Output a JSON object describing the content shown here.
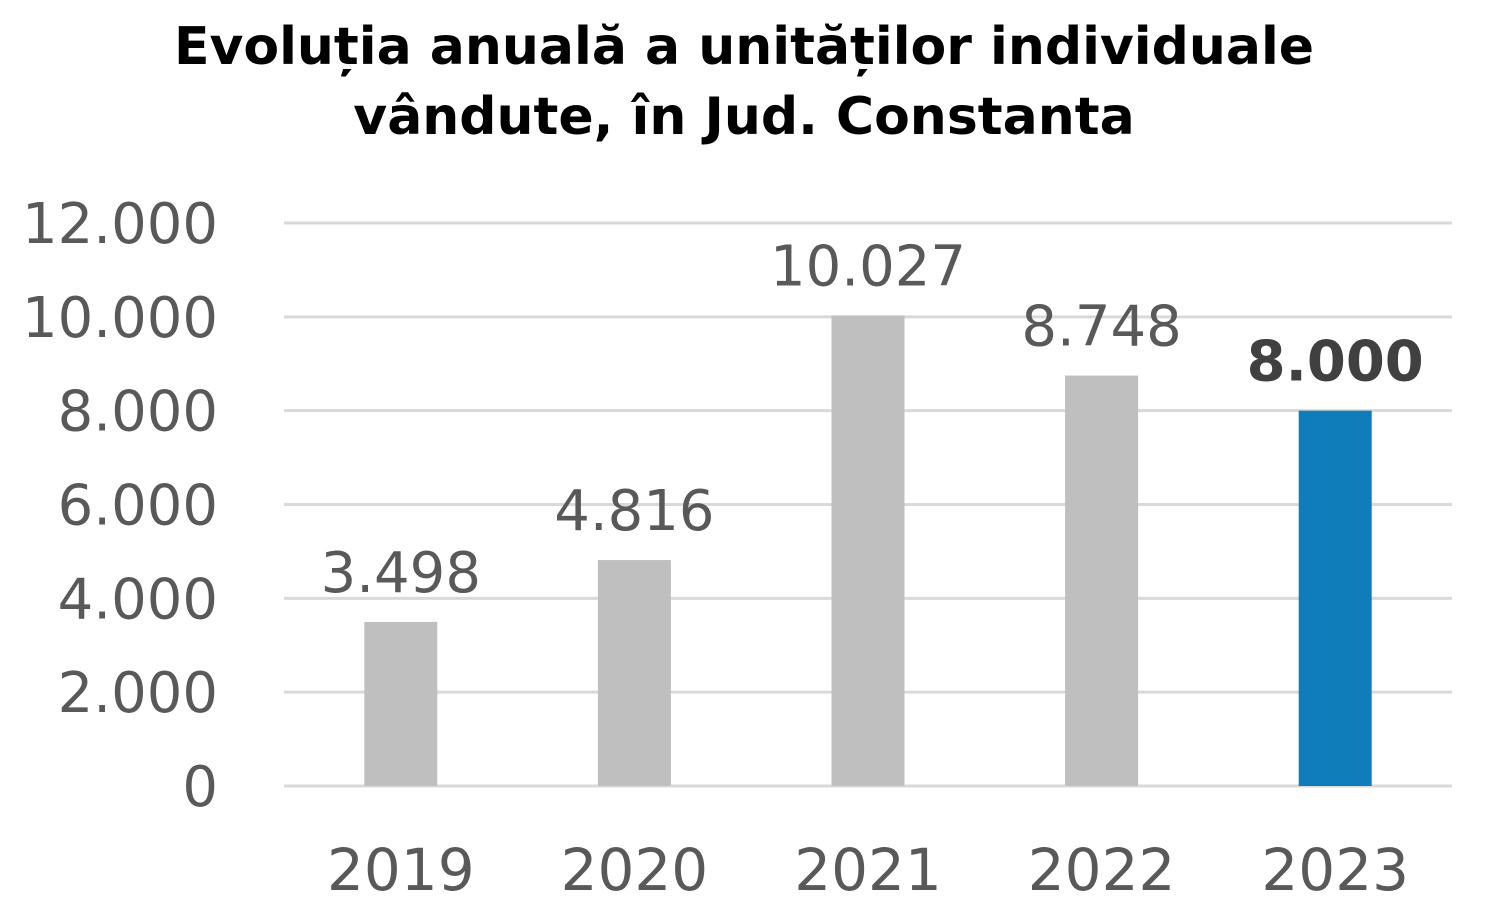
{
  "chart_data": {
    "type": "bar",
    "title_lines": [
      "Evoluția anuală a unităților individuale",
      "vândute, în Jud. Constanta"
    ],
    "categories": [
      "2019",
      "2020",
      "2021",
      "2022",
      "2023"
    ],
    "values": [
      3498,
      4816,
      10027,
      8748,
      8000
    ],
    "data_labels": [
      "3.498",
      "4.816",
      "10.027",
      "8.748",
      "8.000"
    ],
    "highlight_index": 4,
    "ylim": [
      0,
      12000
    ],
    "yticks": [
      0,
      2000,
      4000,
      6000,
      8000,
      10000,
      12000
    ],
    "ytick_labels": [
      "0",
      "2.000",
      "4.000",
      "6.000",
      "8.000",
      "10.000",
      "12.000"
    ],
    "grid": true,
    "xlabel": "",
    "ylabel": "",
    "colors": {
      "default": "#BFBFBF",
      "highlight": "#0F7DBA",
      "grid": "#D9D9D9",
      "text": "#595959"
    }
  }
}
